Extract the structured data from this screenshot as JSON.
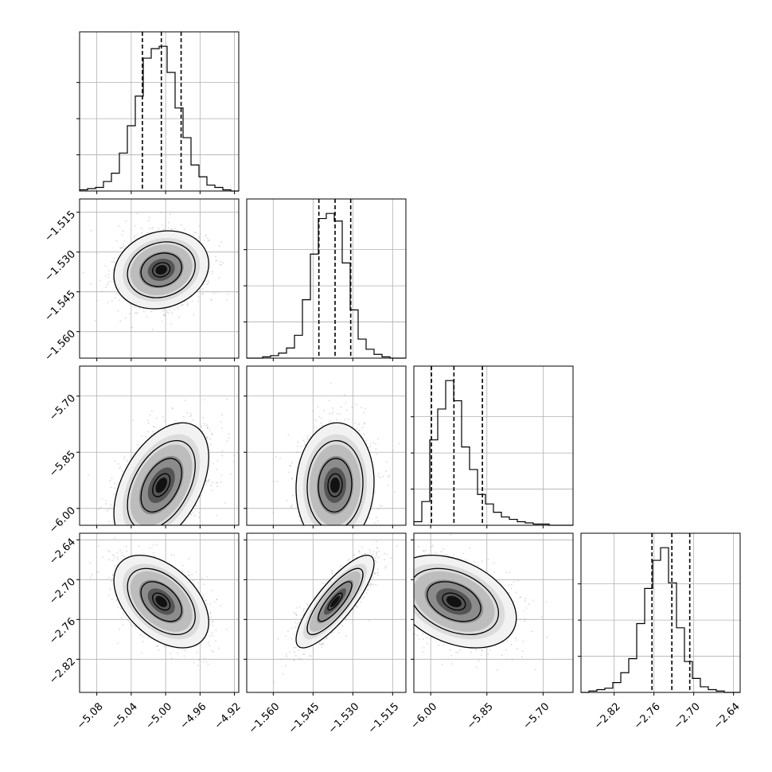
{
  "chart_data": {
    "type": "corner",
    "grid": true,
    "parameters": [
      {
        "ticks": [
          -5.08,
          -5.04,
          -5.0,
          -4.96,
          -4.92
        ],
        "tick_labels": [
          "−5.08",
          "−5.04",
          "−5.00",
          "−4.96",
          "−4.92"
        ],
        "range": [
          -5.1,
          -4.915
        ],
        "quantiles": [
          -5.027,
          -5.005,
          -4.982
        ]
      },
      {
        "ticks": [
          -1.56,
          -1.545,
          -1.53,
          -1.515
        ],
        "tick_labels": [
          "−1.560",
          "−1.545",
          "−1.530",
          "−1.515"
        ],
        "range": [
          -1.57,
          -1.51
        ],
        "quantiles": [
          -1.5428,
          -1.5367,
          -1.5308
        ]
      },
      {
        "ticks": [
          -6.0,
          -5.85,
          -5.7
        ],
        "tick_labels": [
          "−6.00",
          "−5.85",
          "−5.70"
        ],
        "range": [
          -6.045,
          -5.62
        ],
        "quantiles": [
          -5.998,
          -5.938,
          -5.862
        ]
      },
      {
        "ticks": [
          -2.82,
          -2.76,
          -2.7,
          -2.64
        ],
        "tick_labels": [
          "−2.82",
          "−2.76",
          "−2.70",
          "−2.64"
        ],
        "range": [
          -2.87,
          -2.63
        ],
        "quantiles": [
          -2.763,
          -2.733,
          -2.706
        ]
      }
    ],
    "histograms": [
      [
        1,
        2,
        3,
        8,
        15,
        32,
        55,
        80,
        112,
        120,
        122,
        100,
        70,
        45,
        22,
        12,
        5,
        3,
        1,
        0
      ],
      [
        0,
        0,
        1,
        2,
        4,
        8,
        18,
        46,
        82,
        110,
        114,
        108,
        75,
        38,
        15,
        7,
        3,
        1,
        0,
        0
      ],
      [
        3,
        20,
        72,
        98,
        122,
        105,
        66,
        47,
        26,
        18,
        11,
        7,
        5,
        3,
        2,
        1,
        1,
        0,
        0,
        0
      ],
      [
        0,
        1,
        2,
        3,
        7,
        14,
        24,
        49,
        74,
        94,
        103,
        78,
        46,
        22,
        10,
        4,
        2,
        1,
        0,
        0
      ]
    ],
    "pairs": [
      {
        "x": 0,
        "y": 1,
        "rho": 0.15
      },
      {
        "x": 0,
        "y": 2,
        "rho": 0.45
      },
      {
        "x": 1,
        "y": 2,
        "rho": 0.05
      },
      {
        "x": 0,
        "y": 3,
        "rho": -0.45
      },
      {
        "x": 1,
        "y": 3,
        "rho": 0.82
      },
      {
        "x": 2,
        "y": 3,
        "rho": -0.35
      }
    ]
  }
}
